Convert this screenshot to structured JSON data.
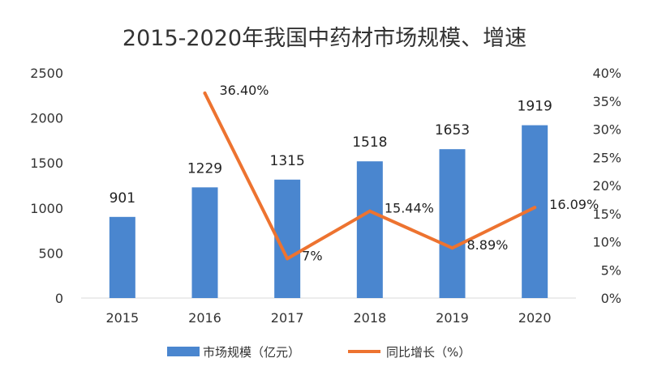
{
  "chart_data": {
    "type": "bar",
    "title": "2015-2020年我国中药材市场规模、增速",
    "categories": [
      "2015",
      "2016",
      "2017",
      "2018",
      "2019",
      "2020"
    ],
    "series": [
      {
        "name": "市场规模（亿元）",
        "type": "bar",
        "axis": "left",
        "color": "#4a86cf",
        "values": [
          901,
          1229,
          1315,
          1518,
          1653,
          1919
        ],
        "labels": [
          "901",
          "1229",
          "1315",
          "1518",
          "1653",
          "1919"
        ]
      },
      {
        "name": "同比增长（%）",
        "type": "line",
        "axis": "right",
        "color": "#ed7330",
        "values": [
          null,
          36.4,
          7.0,
          15.44,
          8.89,
          16.09
        ],
        "labels": [
          "",
          "36.40%",
          "7%",
          "15.44%",
          "8.89%",
          "16.09%"
        ]
      }
    ],
    "y_left": {
      "min": 0,
      "max": 2500,
      "ticks": [
        "0",
        "500",
        "1000",
        "1500",
        "2000",
        "2500"
      ]
    },
    "y_right": {
      "min": 0,
      "max": 40,
      "ticks": [
        "0%",
        "5%",
        "10%",
        "15%",
        "20%",
        "25%",
        "30%",
        "35%",
        "40%"
      ]
    },
    "grid": false,
    "legend_position": "bottom"
  }
}
